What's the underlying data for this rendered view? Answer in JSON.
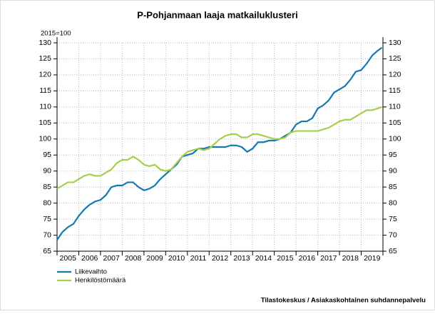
{
  "chart_data": {
    "type": "line",
    "title": "P-Pohjanmaan laaja matkailuklusteri",
    "ylabel": "2015=100",
    "source": "Tilastokeskus / Asiakaskohtainen suhdannepalvelu",
    "x": [
      2005,
      2005.25,
      2005.5,
      2005.75,
      2006,
      2006.25,
      2006.5,
      2006.75,
      2007,
      2007.25,
      2007.5,
      2007.75,
      2008,
      2008.25,
      2008.5,
      2008.75,
      2009,
      2009.25,
      2009.5,
      2009.75,
      2010,
      2010.25,
      2010.5,
      2010.75,
      2011,
      2011.25,
      2011.5,
      2011.75,
      2012,
      2012.25,
      2012.5,
      2012.75,
      2013,
      2013.25,
      2013.5,
      2013.75,
      2014,
      2014.25,
      2014.5,
      2014.75,
      2015,
      2015.25,
      2015.5,
      2015.75,
      2016,
      2016.25,
      2016.5,
      2016.75,
      2017,
      2017.25,
      2017.5,
      2017.75,
      2018,
      2018.25,
      2018.5,
      2018.75,
      2019,
      2019.25,
      2019.5,
      2019.75,
      2019.95
    ],
    "series": [
      {
        "name": "Liikevaihto",
        "color": "#1479b0",
        "values": [
          68.5,
          71,
          72.5,
          73.5,
          76,
          78,
          79.5,
          80.5,
          81,
          82.5,
          85,
          85.5,
          85.5,
          86.5,
          86.5,
          85,
          84,
          84.5,
          85.5,
          87.5,
          89,
          90.5,
          92,
          94.5,
          95,
          95.5,
          97,
          97,
          97.5,
          97.5,
          97.5,
          97.5,
          98,
          98,
          97.5,
          96,
          97,
          99,
          99,
          99.5,
          99.5,
          100,
          101,
          102,
          104.5,
          105.5,
          105.5,
          106.5,
          109.5,
          110.5,
          112,
          114.5,
          115.5,
          116.5,
          118.5,
          121,
          121.5,
          123.5,
          126,
          127.5,
          128.5
        ]
      },
      {
        "name": "Henkilöstömäärä",
        "color": "#a6cf48",
        "values": [
          84.5,
          85.5,
          86.5,
          86.5,
          87.5,
          88.5,
          89,
          88.5,
          88.5,
          89.5,
          90.5,
          92.5,
          93.5,
          93.5,
          94.5,
          93.5,
          92,
          91.5,
          92,
          90.5,
          90,
          90.5,
          92.5,
          94.5,
          96,
          96.5,
          97,
          96.5,
          97,
          98.5,
          100,
          101,
          101.5,
          101.5,
          100.5,
          100.5,
          101.5,
          101.5,
          101,
          100.5,
          100,
          100,
          100.5,
          102,
          102.5,
          102.5,
          102.5,
          102.5,
          102.5,
          103,
          103.5,
          104.5,
          105.5,
          106,
          106,
          107,
          108,
          109,
          109,
          109.5,
          110
        ]
      }
    ],
    "xlim": [
      2005,
      2020
    ],
    "xgrid": [
      2005,
      2006,
      2007,
      2008,
      2009,
      2010,
      2011,
      2012,
      2013,
      2014,
      2015,
      2016,
      2017,
      2018,
      2019,
      2020
    ],
    "xticks": [
      {
        "value": 2005.5,
        "label": "2005"
      },
      {
        "value": 2006.5,
        "label": "2006"
      },
      {
        "value": 2007.5,
        "label": "2007"
      },
      {
        "value": 2008.5,
        "label": "2008"
      },
      {
        "value": 2009.5,
        "label": "2009"
      },
      {
        "value": 2010.5,
        "label": "2010"
      },
      {
        "value": 2011.5,
        "label": "2011"
      },
      {
        "value": 2012.5,
        "label": "2012"
      },
      {
        "value": 2013.5,
        "label": "2013"
      },
      {
        "value": 2014.5,
        "label": "2014"
      },
      {
        "value": 2015.5,
        "label": "2015"
      },
      {
        "value": 2016.5,
        "label": "2016"
      },
      {
        "value": 2017.5,
        "label": "2017"
      },
      {
        "value": 2018.5,
        "label": "2018"
      },
      {
        "value": 2019.5,
        "label": "2019"
      }
    ],
    "ylim": [
      65,
      130
    ],
    "yticks": [
      65,
      70,
      75,
      80,
      85,
      90,
      95,
      100,
      105,
      110,
      115,
      120,
      125,
      130
    ],
    "y2lim": [
      65,
      130
    ],
    "y2ticks": [
      65,
      70,
      75,
      80,
      85,
      90,
      95,
      100,
      105,
      110,
      115,
      120,
      125,
      130
    ],
    "grid": true,
    "legend": "bottom-left"
  }
}
